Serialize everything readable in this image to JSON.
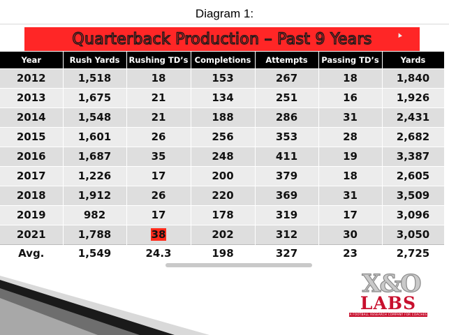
{
  "caption": "Diagram 1:",
  "table": {
    "title": "Quarterback Production – Past 9 Years",
    "columns": [
      "Year",
      "Rush Yards",
      "Rushing TD’s",
      "Completions",
      "Attempts",
      "Passing TD’s",
      "Yards"
    ],
    "rows": [
      [
        "2012",
        "1,518",
        "18",
        "153",
        "267",
        "18",
        "1,840"
      ],
      [
        "2013",
        "1,675",
        "21",
        "134",
        "251",
        "16",
        "1,926"
      ],
      [
        "2014",
        "1,548",
        "21",
        "188",
        "286",
        "31",
        "2,431"
      ],
      [
        "2015",
        "1,601",
        "26",
        "256",
        "353",
        "28",
        "2,682"
      ],
      [
        "2016",
        "1,687",
        "35",
        "248",
        "411",
        "19",
        "3,387"
      ],
      [
        "2017",
        "1,226",
        "17",
        "200",
        "379",
        "18",
        "2,605"
      ],
      [
        "2018",
        "1,912",
        "26",
        "220",
        "369",
        "31",
        "3,509"
      ],
      [
        "2019",
        "982",
        "17",
        "178",
        "319",
        "17",
        "3,096"
      ],
      [
        "2021",
        "1,788",
        "38",
        "202",
        "312",
        "30",
        "3,050"
      ]
    ],
    "average": [
      "Avg.",
      "1,549",
      "24.3",
      "198",
      "327",
      "23",
      "2,725"
    ],
    "highlight_color": "#ff2a1a",
    "highlighted_cell": {
      "row": 8,
      "col": 2
    }
  },
  "logo": {
    "mark": "X&O",
    "name": "LABS",
    "tagline": "A FOOTBALL RESEARCH COMPANY FOR COACHES",
    "color": "#c8102e"
  }
}
